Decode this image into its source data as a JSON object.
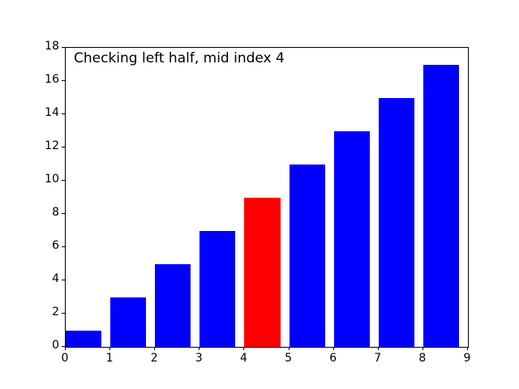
{
  "chart_data": {
    "type": "bar",
    "annotation": "Checking left half, mid index 4",
    "x": [
      0,
      1,
      2,
      3,
      4,
      5,
      6,
      7,
      8
    ],
    "values": [
      1,
      3,
      5,
      7,
      9,
      11,
      13,
      15,
      17
    ],
    "highlight_index": 4,
    "bar_width": 0.8,
    "xlim": [
      0,
      9
    ],
    "ylim": [
      0,
      18
    ],
    "x_ticks": [
      0,
      1,
      2,
      3,
      4,
      5,
      6,
      7,
      8,
      9
    ],
    "y_ticks": [
      0,
      2,
      4,
      6,
      8,
      10,
      12,
      14,
      16,
      18
    ],
    "title": "",
    "xlabel": "",
    "ylabel": "",
    "grid": false,
    "legend": false,
    "colors": {
      "bar": "#0000ff",
      "highlight": "#ff0000",
      "background": "#ffffff",
      "spine": "#000000",
      "text": "#000000"
    }
  }
}
